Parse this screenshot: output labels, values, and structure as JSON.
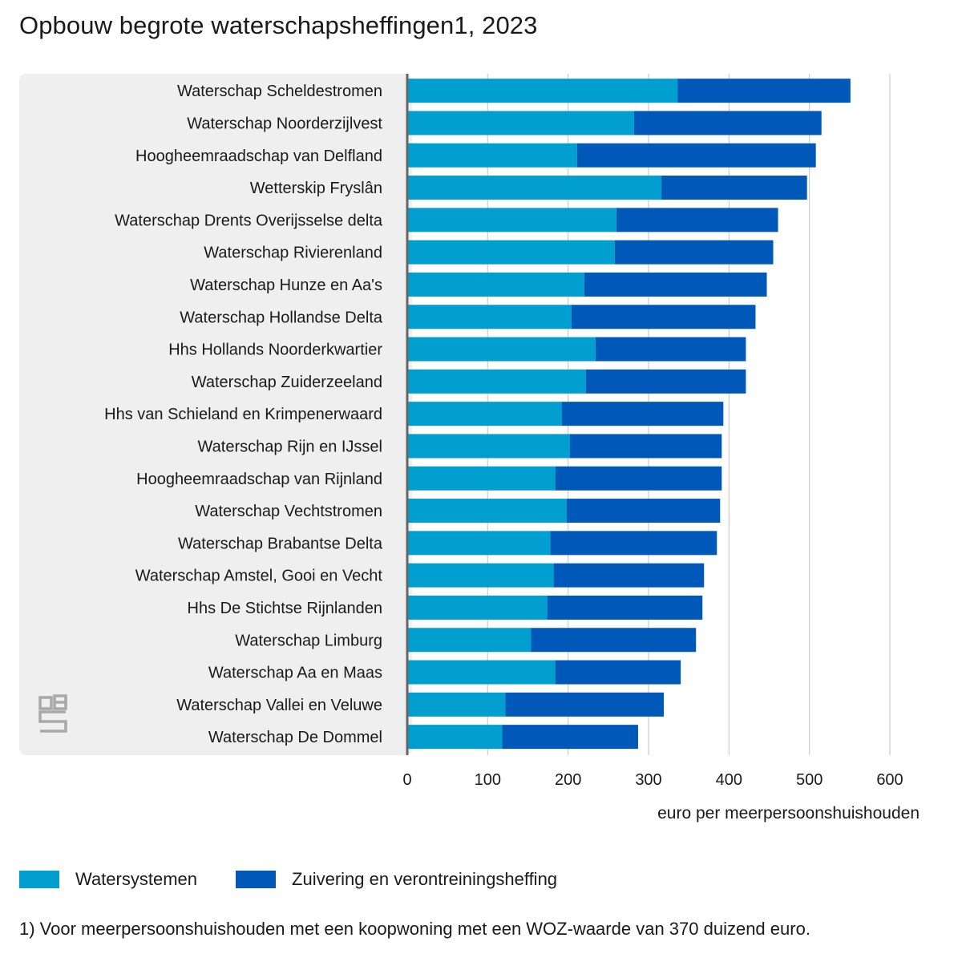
{
  "title": "Opbouw begrote waterschapsheffingen1, 2023",
  "footnote": "1) Voor meerpersoonshuishouden met een koopwoning met een WOZ-waarde van 370 duizend euro.",
  "colors": {
    "watersystemen": "#009fcf",
    "zuivering": "#0058b8",
    "panel": "#efefef",
    "grid": "#cccccc",
    "axis": "#666666"
  },
  "logo": {
    "text": "cbs"
  },
  "chart_data": {
    "type": "bar",
    "orientation": "horizontal",
    "stacked": true,
    "categories": [
      "Waterschap Scheldestromen",
      "Waterschap Noorderzijlvest",
      "Hoogheemraadschap van Delfland",
      "Wetterskip Fryslân",
      "Waterschap Drents Overijsselse delta",
      "Waterschap Rivierenland",
      "Waterschap Hunze en Aa's",
      "Waterschap Hollandse Delta",
      "Hhs Hollands Noorderkwartier",
      "Waterschap Zuiderzeeland",
      "Hhs van Schieland en Krimpenerwaard",
      "Waterschap Rijn en IJssel",
      "Hoogheemraadschap van Rijnland",
      "Waterschap Vechtstromen",
      "Waterschap Brabantse Delta",
      "Waterschap Amstel, Gooi en Vecht",
      "Hhs De Stichtse Rijnlanden",
      "Waterschap Limburg",
      "Waterschap Aa en Maas",
      "Waterschap Vallei en Veluwe",
      "Waterschap De Dommel"
    ],
    "series": [
      {
        "name": "Watersystemen",
        "values": [
          336,
          282,
          211,
          316,
          260,
          258,
          220,
          204,
          234,
          222,
          192,
          202,
          184,
          198,
          178,
          182,
          174,
          154,
          184,
          122,
          118
        ]
      },
      {
        "name": "Zuivering en verontreiningsheffing",
        "values": [
          215,
          233,
          297,
          181,
          201,
          197,
          227,
          229,
          187,
          199,
          201,
          189,
          207,
          191,
          207,
          187,
          193,
          205,
          156,
          197,
          169
        ]
      }
    ],
    "xlabel": "euro per meerpersoonshuishouden",
    "ylabel": "",
    "xlim": [
      0,
      600
    ],
    "xticks": [
      0,
      100,
      200,
      300,
      400,
      500,
      600
    ],
    "grid": true,
    "legend_position": "bottom"
  }
}
